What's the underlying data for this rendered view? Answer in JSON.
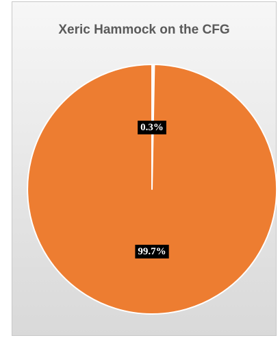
{
  "chart_data": {
    "type": "pie",
    "title": "Xeric Hammock on the CFG",
    "slices": [
      {
        "value": 0.3,
        "label": "0.3%",
        "color": "#ffffff"
      },
      {
        "value": 99.7,
        "label": "99.7%",
        "color": "#ed7d31"
      }
    ],
    "start_angle_deg": 0,
    "direction": "clockwise",
    "legend": "none",
    "slice_border_color": "#ffffff",
    "data_label_background": "#000000"
  }
}
